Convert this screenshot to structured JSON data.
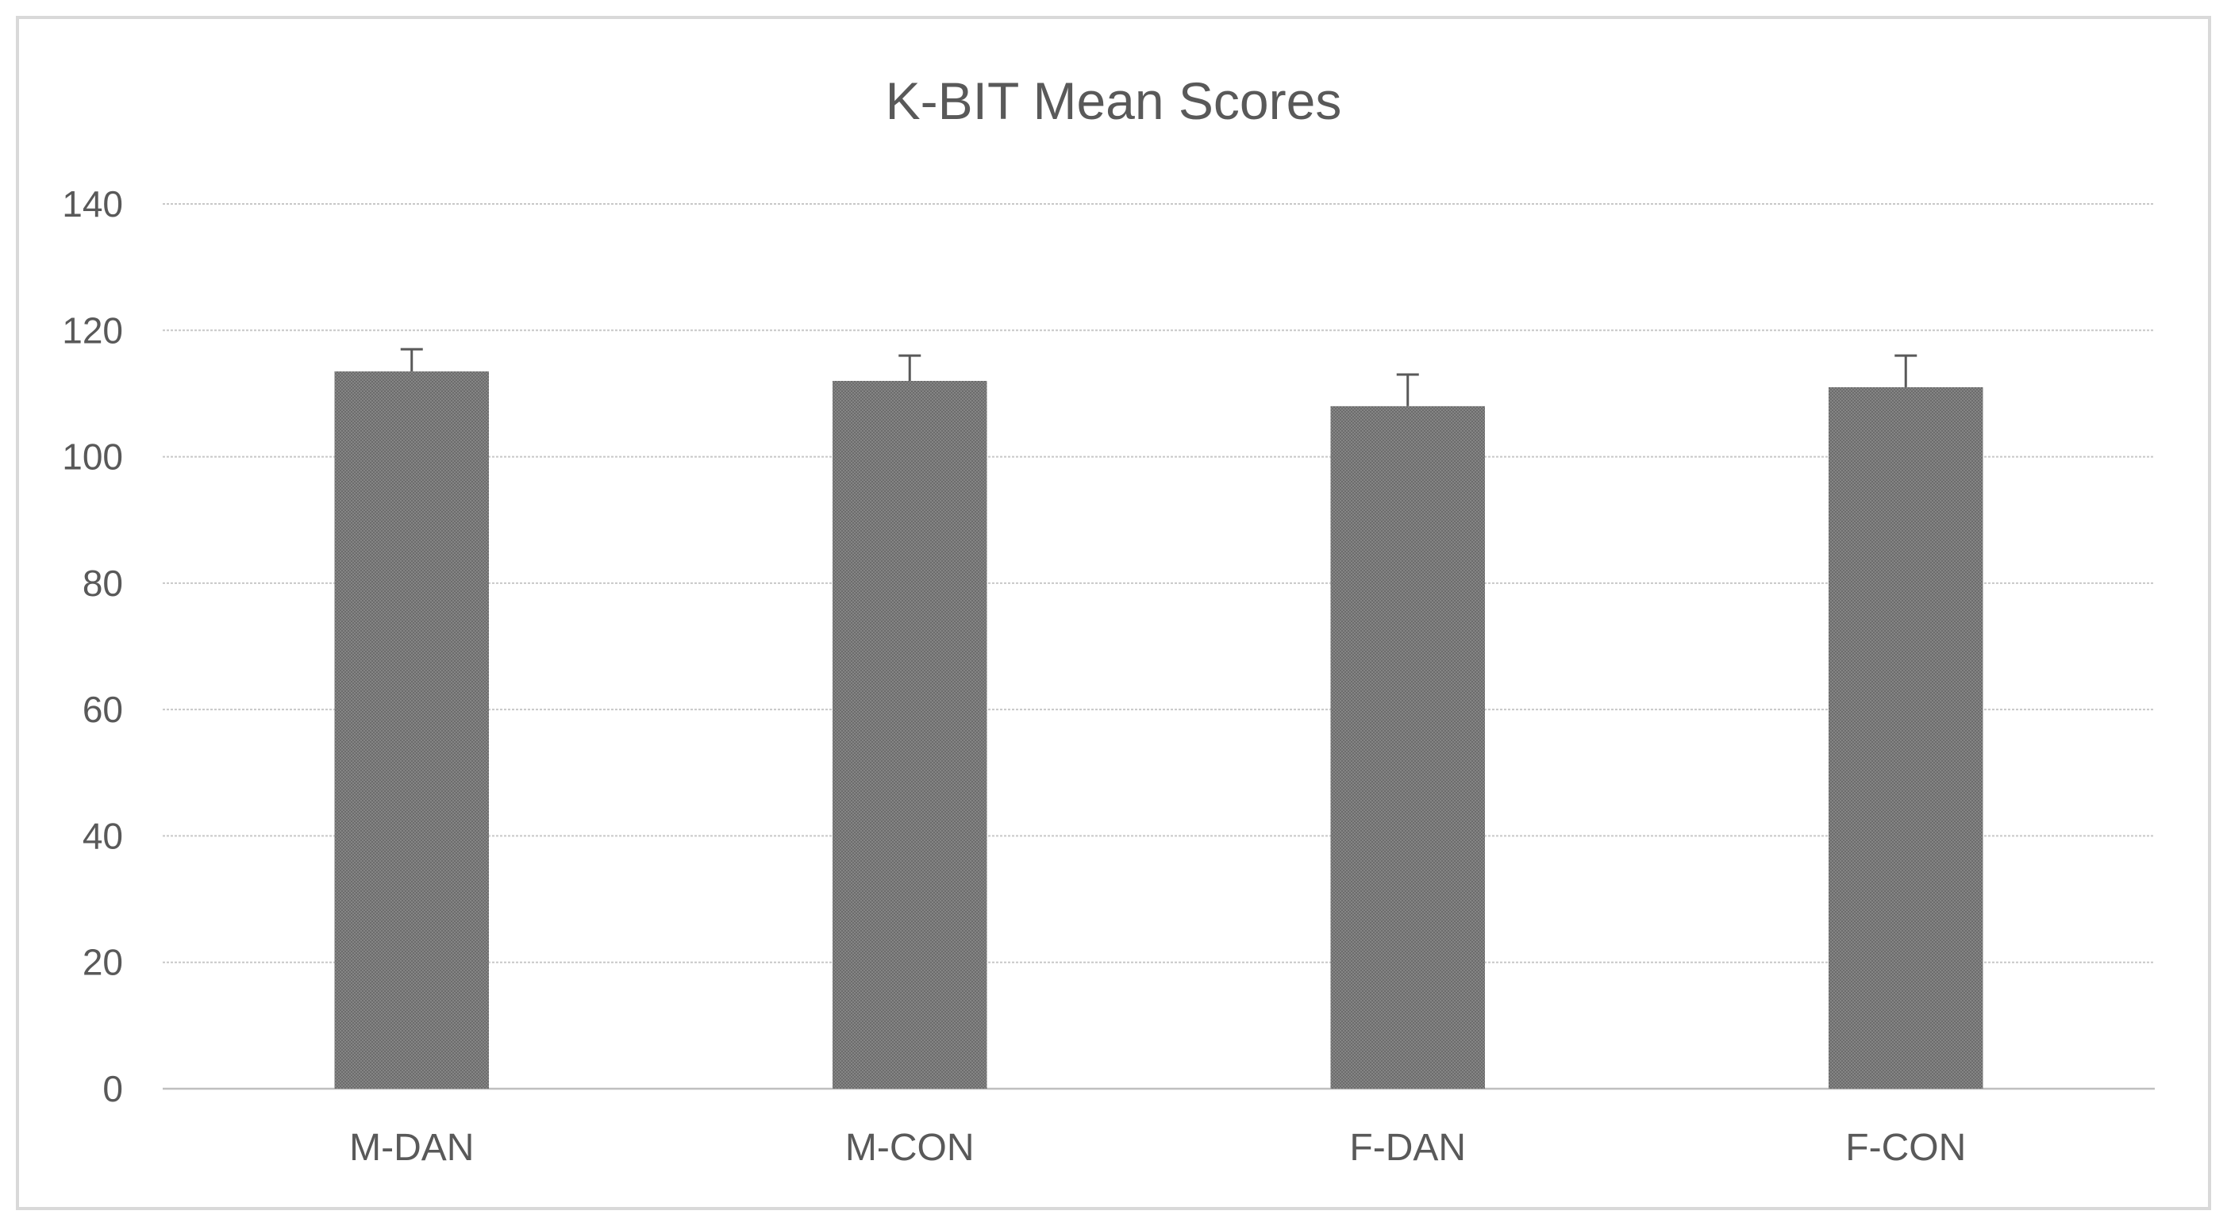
{
  "chart_data": {
    "type": "bar",
    "title": "K-BIT Mean Scores",
    "xlabel": "",
    "ylabel": "",
    "categories": [
      "M-DAN",
      "M-CON",
      "F-DAN",
      "F-CON"
    ],
    "values": [
      113.5,
      112,
      108,
      111
    ],
    "error_plus": [
      3.5,
      4,
      5,
      5
    ],
    "ylim": [
      0,
      140
    ],
    "yticks": [
      0,
      20,
      40,
      60,
      80,
      100,
      120,
      140
    ],
    "ytick_labels": [
      "0",
      "20",
      "40",
      "60",
      "80",
      "100",
      "120",
      "140"
    ],
    "grid": true,
    "legend": "none",
    "colors": {
      "bar": "#808080",
      "bar_dark": "#6a6a6a",
      "error_bar": "#595959",
      "gridline": "#c8c8c8",
      "text": "#595959",
      "frame": "#d9d9d9"
    }
  }
}
